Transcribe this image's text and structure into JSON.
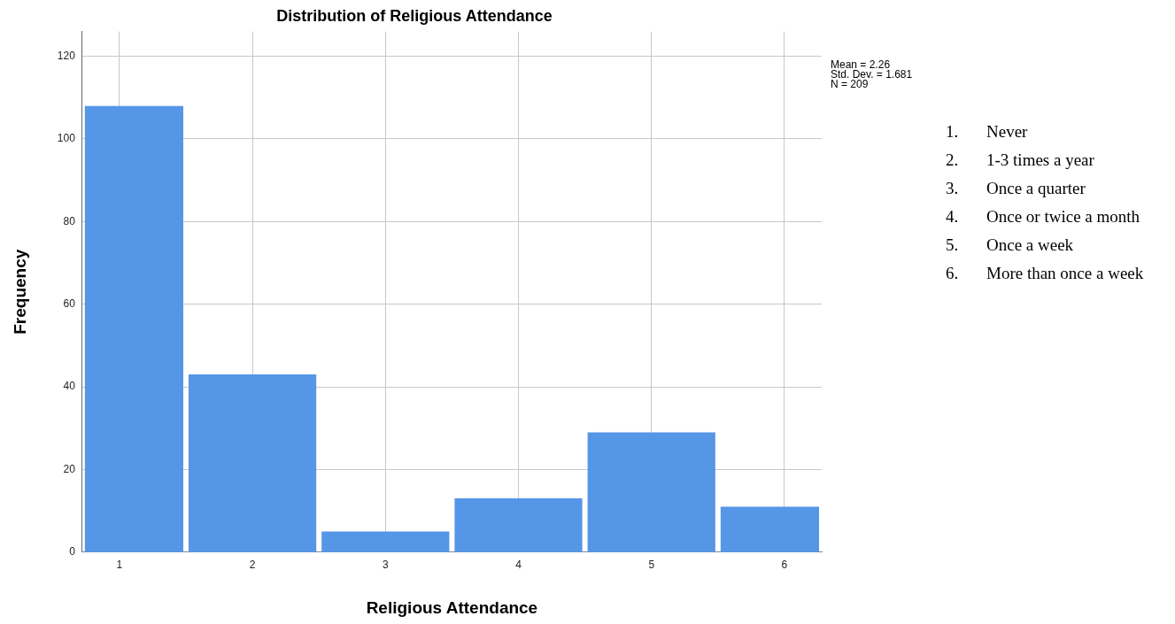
{
  "chart_data": {
    "type": "histogram",
    "title": "Distribution of Religious Attendance",
    "xlabel": "Religious Attendance",
    "ylabel": "Frequency",
    "bins": [
      0.72,
      1.5,
      2.5,
      3.5,
      4.5,
      5.5,
      6.28
    ],
    "values": [
      108,
      43,
      5,
      13,
      29,
      11
    ],
    "color": "#5596e6",
    "xlim": [
      0.72,
      6.28
    ],
    "xticks": [
      1,
      2,
      3,
      4,
      5,
      6
    ],
    "ylim": [
      0,
      126
    ],
    "yticks": [
      0,
      20,
      40,
      60,
      80,
      100,
      120
    ],
    "grid": true,
    "annotations": [
      "Mean = 2.26",
      "Std. Dev. = 1.681",
      "N = 209",
      "1. Never",
      "2. 1-3 times a year",
      "3. Once a quarter",
      "4. Once or twice a month",
      "5. Once a week",
      "6. More than once a week"
    ]
  }
}
